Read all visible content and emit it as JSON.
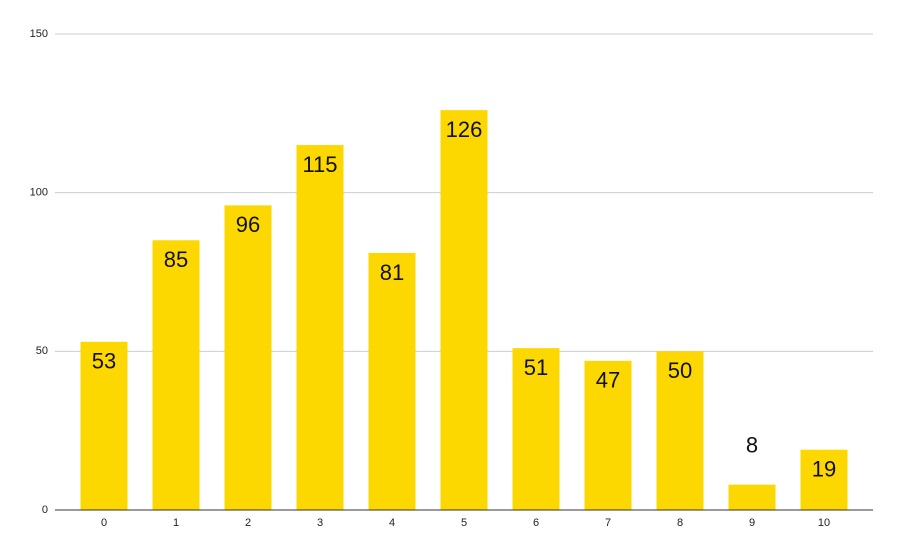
{
  "chart_data": {
    "type": "bar",
    "categories": [
      "0",
      "1",
      "2",
      "3",
      "4",
      "5",
      "6",
      "7",
      "8",
      "9",
      "10"
    ],
    "values": [
      53,
      85,
      96,
      115,
      81,
      126,
      51,
      47,
      50,
      8,
      19
    ],
    "color": "#fdd700",
    "ylim": [
      0,
      150
    ],
    "yticks": [
      0,
      50,
      100,
      150
    ],
    "grid": true
  }
}
